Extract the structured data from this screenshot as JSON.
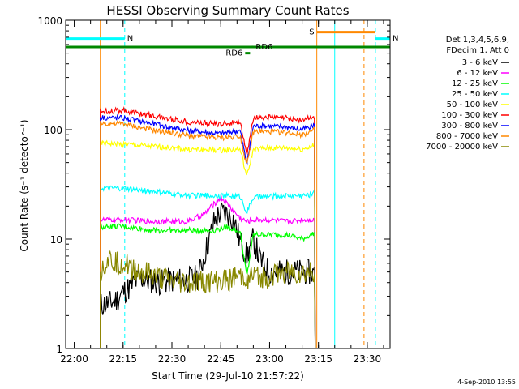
{
  "chart_data": {
    "type": "line",
    "title": "HESSI Observing Summary Count Rates",
    "xlabel": "Start Time (29-Jul-10 21:57:22)",
    "ylabel": "Count Rate (s⁻¹ detector⁻¹)",
    "ylog": true,
    "ylim": [
      1,
      1000
    ],
    "xlim": [
      "21:57:22",
      "23:37:00"
    ],
    "x_ticks": [
      "22:00",
      "22:15",
      "22:30",
      "22:45",
      "23:00",
      "23:15",
      "23:30"
    ],
    "y_ticks": [
      "1",
      "10",
      "100",
      "1000"
    ],
    "timestamp": "4-Sep-2010 13:55",
    "legend": {
      "position": "right",
      "header": [
        "Det 1,3,4,5,6,9,",
        "FDecim 1, Att 0"
      ]
    },
    "series": [
      {
        "name": "3 - 6 keV",
        "color": "#000000",
        "x": [
          "22:08",
          "22:11",
          "22:13",
          "22:15",
          "22:17",
          "22:20",
          "22:23",
          "22:26",
          "22:30",
          "22:34",
          "22:38",
          "22:41",
          "22:43",
          "22:45",
          "22:47",
          "22:49",
          "22:51",
          "22:53",
          "22:55",
          "22:57",
          "23:00",
          "23:03",
          "23:06",
          "23:09",
          "23:12",
          "23:14"
        ],
        "y": [
          2.5,
          2.6,
          2.8,
          3.3,
          3.6,
          4.4,
          4.2,
          4.0,
          4.2,
          4.2,
          4.5,
          9.0,
          14.5,
          17.5,
          17.0,
          15.0,
          9.5,
          7.0,
          10.0,
          6.5,
          5.0,
          5.0,
          5.0,
          5.0,
          5.0,
          4.8
        ]
      },
      {
        "name": "6 - 12 keV",
        "color": "#ff00ff",
        "x": [
          "22:08",
          "22:15",
          "22:25",
          "22:35",
          "22:40",
          "22:43",
          "22:45",
          "22:47",
          "22:49",
          "22:51",
          "22:53",
          "22:55",
          "23:00",
          "23:05",
          "23:10",
          "23:14"
        ],
        "y": [
          15,
          15,
          14.5,
          14.5,
          17,
          21,
          24,
          21,
          18,
          15.5,
          14.5,
          15,
          15,
          14.5,
          15,
          15
        ]
      },
      {
        "name": "12 - 25 keV",
        "color": "#00ff00",
        "x": [
          "22:08",
          "22:15",
          "22:25",
          "22:35",
          "22:43",
          "22:47",
          "22:51",
          "22:53",
          "22:55",
          "23:00",
          "23:05",
          "23:10",
          "23:14"
        ],
        "y": [
          13,
          13,
          12,
          12,
          12,
          13,
          11.5,
          4.5,
          11,
          11,
          11,
          10,
          11.5
        ]
      },
      {
        "name": "25 - 50 keV",
        "color": "#00ffff",
        "x": [
          "22:08",
          "22:15",
          "22:25",
          "22:35",
          "22:45",
          "22:51",
          "22:53",
          "22:55",
          "23:00",
          "23:05",
          "23:10",
          "23:13",
          "23:14"
        ],
        "y": [
          29,
          29,
          27,
          25,
          25,
          24.5,
          17.5,
          24,
          24.5,
          25,
          25,
          25.5,
          31
        ]
      },
      {
        "name": "50 - 100 keV",
        "color": "#ffff00",
        "x": [
          "22:08",
          "22:15",
          "22:25",
          "22:35",
          "22:45",
          "22:51",
          "22:53",
          "22:55",
          "23:00",
          "23:05",
          "23:10",
          "23:14"
        ],
        "y": [
          75,
          74,
          70,
          66,
          65,
          66,
          37,
          66,
          68,
          68,
          66,
          72
        ]
      },
      {
        "name": "100 - 300 keV",
        "color": "#ff0000",
        "x": [
          "22:08",
          "22:15",
          "22:25",
          "22:35",
          "22:45",
          "22:51",
          "22:53",
          "22:55",
          "23:00",
          "23:05",
          "23:10",
          "23:14"
        ],
        "y": [
          148,
          150,
          132,
          118,
          112,
          120,
          56,
          130,
          130,
          128,
          122,
          132
        ]
      },
      {
        "name": "300 - 800 keV",
        "color": "#0000ff",
        "x": [
          "22:08",
          "22:15",
          "22:25",
          "22:35",
          "22:45",
          "22:51",
          "22:53",
          "22:55",
          "23:00",
          "23:05",
          "23:10",
          "23:14"
        ],
        "y": [
          130,
          128,
          112,
          98,
          92,
          98,
          48,
          108,
          108,
          106,
          100,
          112
        ]
      },
      {
        "name": "800 - 7000 keV",
        "color": "#ff8800",
        "x": [
          "22:08",
          "22:15",
          "22:25",
          "22:35",
          "22:45",
          "22:51",
          "22:53",
          "22:55",
          "23:00",
          "23:05",
          "23:10",
          "23:14"
        ],
        "y": [
          115,
          113,
          98,
          88,
          84,
          88,
          46,
          96,
          96,
          94,
          90,
          100
        ]
      },
      {
        "name": "7000 - 20000 keV",
        "color": "#888800",
        "x": [
          "22:08",
          "22:10",
          "22:15",
          "22:20",
          "22:25",
          "22:30",
          "22:35",
          "22:40",
          "22:45",
          "22:50",
          "22:55",
          "23:00",
          "23:05",
          "23:10",
          "23:14"
        ],
        "y": [
          5,
          6.5,
          6,
          5,
          4.5,
          4,
          4,
          4,
          4,
          4.5,
          4.5,
          4.5,
          5,
          4.8,
          5
        ]
      }
    ],
    "flag_lines": [
      {
        "label": "N",
        "color": "#00ffff",
        "x_start": "21:57:22",
        "x_end": "22:15:30",
        "y": 680
      },
      {
        "label": "N",
        "color": "#00ffff",
        "x_start": "23:32:30",
        "x_end": "23:37:00",
        "y": 680
      },
      {
        "label": "S",
        "color": "#ff8800",
        "x_start": "23:14:30",
        "x_end": "23:32:30",
        "y": 780
      },
      {
        "label": "",
        "color": "#008800",
        "x_start": "21:57:22",
        "x_end": "23:37:00",
        "y": 570
      },
      {
        "label": "RD6",
        "color": "#008800",
        "x_start": "22:52:30",
        "x_end": "22:54:00",
        "y": 500
      },
      {
        "label": "RD6",
        "color": "#008800",
        "x_start": "22:54:30",
        "x_end": "22:55:00",
        "y": 570
      }
    ],
    "vertical_lines": [
      {
        "x": "21:57:22",
        "color": "#00ffff",
        "style": "solid"
      },
      {
        "x": "22:08:00",
        "color": "#ff8800",
        "style": "solid"
      },
      {
        "x": "22:15:30",
        "color": "#00ffff",
        "style": "dashed"
      },
      {
        "x": "23:14:30",
        "color": "#ff8800",
        "style": "solid"
      },
      {
        "x": "23:20:00",
        "color": "#00ffff",
        "style": "solid"
      },
      {
        "x": "23:29:00",
        "color": "#ff8800",
        "style": "dashed"
      },
      {
        "x": "23:32:30",
        "color": "#00ffff",
        "style": "dashed"
      }
    ]
  }
}
